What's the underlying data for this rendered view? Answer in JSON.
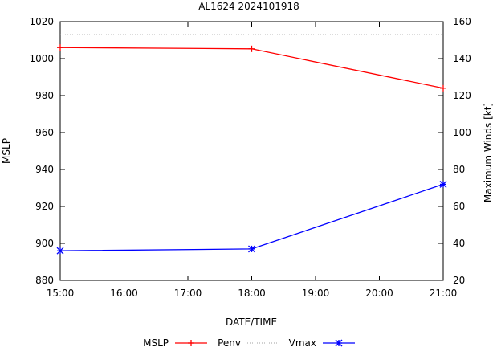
{
  "chart_data": {
    "type": "line",
    "title": "AL1624 2024101918",
    "xlabel": "DATE/TIME",
    "ylabel_left": "MSLP",
    "ylabel_right": "Maximum Winds [kt]",
    "x_ticks": [
      "15:00",
      "16:00",
      "17:00",
      "18:00",
      "19:00",
      "20:00",
      "21:00"
    ],
    "x_range_hours": [
      15,
      21
    ],
    "y_left": {
      "min": 880,
      "max": 1020,
      "ticks": [
        880,
        900,
        920,
        940,
        960,
        980,
        1000,
        1020
      ]
    },
    "y_right": {
      "min": 20,
      "max": 160,
      "ticks": [
        20,
        40,
        60,
        80,
        100,
        120,
        140,
        160
      ]
    },
    "series": [
      {
        "name": "MSLP",
        "axis": "left",
        "color": "#ff0000",
        "marker": "plus",
        "x": [
          15,
          18,
          21
        ],
        "values": [
          1006,
          1005.3,
          984
        ]
      },
      {
        "name": "Penv",
        "axis": "left",
        "color": "#a0a0a0",
        "style": "dotted",
        "x": [
          15,
          21
        ],
        "values": [
          1013,
          1013
        ]
      },
      {
        "name": "Vmax",
        "axis": "right",
        "color": "#0000ff",
        "marker": "star",
        "x": [
          15,
          18,
          21
        ],
        "values": [
          36,
          37,
          72
        ]
      }
    ],
    "legend": [
      "MSLP",
      "Penv",
      "Vmax"
    ],
    "legend_position": "bottom"
  }
}
